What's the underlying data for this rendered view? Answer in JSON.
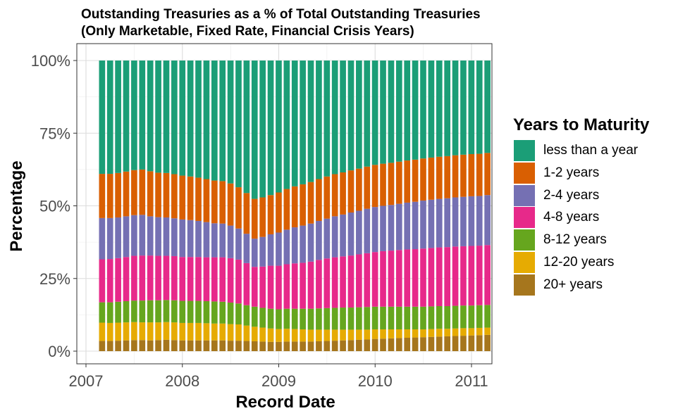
{
  "chart_data": {
    "type": "bar",
    "stacked": true,
    "title": "Outstanding Treasuries as a % of Total Outstanding Treasuries",
    "subtitle": "(Only Marketable, Fixed Rate, Financial Crisis Years)",
    "xlabel": "Record Date",
    "ylabel": "Percentage",
    "x_ticks": [
      "2007",
      "2008",
      "2009",
      "2010",
      "2011"
    ],
    "y_ticks": [
      "0%",
      "25%",
      "50%",
      "75%",
      "100%"
    ],
    "xlim": [
      2007.0,
      2011.05
    ],
    "ylim": [
      0,
      100
    ],
    "grid": true,
    "legend_title": "Years to Maturity",
    "legend_position": "right",
    "x_start": 2007.167,
    "x_step": 0.0833,
    "series": [
      {
        "name": "20+ years",
        "color": "#A6761D",
        "values": [
          3.5,
          3.5,
          3.6,
          3.7,
          3.8,
          3.8,
          3.7,
          3.8,
          3.9,
          3.8,
          3.7,
          3.7,
          3.7,
          3.7,
          3.7,
          3.7,
          3.6,
          3.6,
          3.5,
          3.4,
          3.3,
          3.2,
          3.2,
          3.3,
          3.3,
          3.3,
          3.3,
          3.4,
          3.5,
          3.6,
          3.7,
          3.8,
          3.9,
          4.0,
          4.2,
          4.3,
          4.4,
          4.5,
          4.6,
          4.7,
          4.8,
          4.9,
          5.0,
          5.1,
          5.2,
          5.3,
          5.4,
          5.5,
          5.6
        ]
      },
      {
        "name": "12-20 years",
        "color": "#E6AB02",
        "values": [
          6.3,
          6.2,
          6.2,
          6.2,
          6.2,
          6.1,
          6.2,
          6.1,
          6.1,
          6.1,
          6.0,
          6.0,
          6.0,
          5.9,
          5.8,
          5.8,
          5.7,
          5.6,
          5.3,
          5.0,
          4.8,
          4.6,
          4.4,
          4.4,
          4.3,
          4.2,
          4.1,
          4.0,
          3.9,
          3.8,
          3.7,
          3.6,
          3.5,
          3.4,
          3.3,
          3.2,
          3.1,
          3.0,
          2.9,
          2.8,
          2.7,
          2.7,
          2.7,
          2.6,
          2.6,
          2.6,
          2.5,
          2.5,
          2.5
        ]
      },
      {
        "name": "8-12 years",
        "color": "#66A61E",
        "values": [
          7.0,
          7.1,
          7.2,
          7.3,
          7.4,
          7.5,
          7.6,
          7.6,
          7.6,
          7.6,
          7.6,
          7.6,
          7.6,
          7.6,
          7.6,
          7.5,
          7.4,
          7.2,
          7.0,
          6.9,
          6.8,
          6.8,
          6.8,
          6.9,
          7.0,
          7.1,
          7.2,
          7.3,
          7.4,
          7.5,
          7.6,
          7.6,
          7.7,
          7.8,
          7.8,
          7.8,
          7.8,
          7.8,
          7.8,
          7.8,
          7.8,
          7.8,
          7.8,
          7.8,
          7.8,
          7.8,
          7.8,
          7.8,
          7.8
        ]
      },
      {
        "name": "4-8 years",
        "color": "#E7298A",
        "values": [
          14.8,
          14.9,
          15.0,
          15.2,
          15.4,
          15.5,
          15.4,
          15.3,
          15.2,
          15.2,
          15.1,
          15.1,
          15.1,
          15.1,
          15.2,
          15.3,
          15.3,
          15.1,
          14.5,
          13.7,
          14.2,
          14.8,
          15.0,
          15.3,
          15.6,
          15.8,
          16.2,
          16.7,
          17.1,
          17.4,
          17.6,
          17.9,
          18.2,
          18.5,
          18.8,
          19.1,
          19.3,
          19.5,
          19.7,
          19.8,
          20.0,
          20.1,
          20.2,
          20.3,
          20.4,
          20.4,
          20.5,
          20.5,
          20.6
        ]
      },
      {
        "name": "2-4 years",
        "color": "#7570B3",
        "values": [
          14.2,
          14.1,
          14.0,
          14.0,
          14.0,
          14.0,
          13.5,
          13.3,
          13.2,
          13.0,
          12.9,
          12.7,
          12.4,
          12.1,
          11.7,
          11.6,
          11.2,
          10.7,
          10.1,
          9.7,
          10.2,
          10.8,
          11.4,
          11.9,
          12.4,
          12.8,
          13.1,
          13.4,
          13.7,
          14.1,
          14.4,
          14.8,
          15.0,
          15.3,
          15.5,
          15.6,
          15.7,
          15.9,
          16.1,
          16.3,
          16.5,
          16.6,
          16.7,
          16.8,
          16.9,
          17.0,
          17.1,
          17.1,
          17.2
        ]
      },
      {
        "name": "1-2 years",
        "color": "#D95F02",
        "values": [
          15.2,
          15.2,
          15.3,
          15.4,
          15.5,
          15.6,
          15.5,
          15.3,
          15.3,
          15.2,
          15.1,
          15.0,
          14.9,
          14.8,
          14.7,
          14.6,
          14.5,
          14.2,
          14.0,
          13.7,
          13.6,
          13.5,
          13.8,
          14.0,
          14.1,
          14.2,
          14.3,
          14.4,
          14.5,
          14.5,
          14.5,
          14.5,
          14.5,
          14.5,
          14.5,
          14.5,
          14.5,
          14.5,
          14.5,
          14.5,
          14.5,
          14.5,
          14.5,
          14.5,
          14.5,
          14.5,
          14.5,
          14.5,
          14.5
        ]
      },
      {
        "name": "less than a year",
        "color": "#1B9E77",
        "values": [
          39.0,
          39.0,
          38.7,
          38.2,
          37.7,
          37.5,
          38.1,
          38.6,
          38.7,
          39.1,
          39.6,
          39.9,
          40.3,
          40.8,
          41.3,
          41.5,
          42.3,
          43.6,
          45.6,
          47.6,
          47.1,
          46.3,
          45.4,
          44.2,
          43.3,
          42.6,
          41.8,
          40.8,
          39.9,
          39.1,
          38.5,
          37.8,
          37.2,
          36.5,
          35.9,
          35.5,
          35.2,
          34.8,
          34.4,
          34.1,
          33.7,
          33.4,
          33.1,
          32.9,
          32.6,
          32.4,
          32.2,
          32.1,
          31.8
        ]
      }
    ]
  }
}
